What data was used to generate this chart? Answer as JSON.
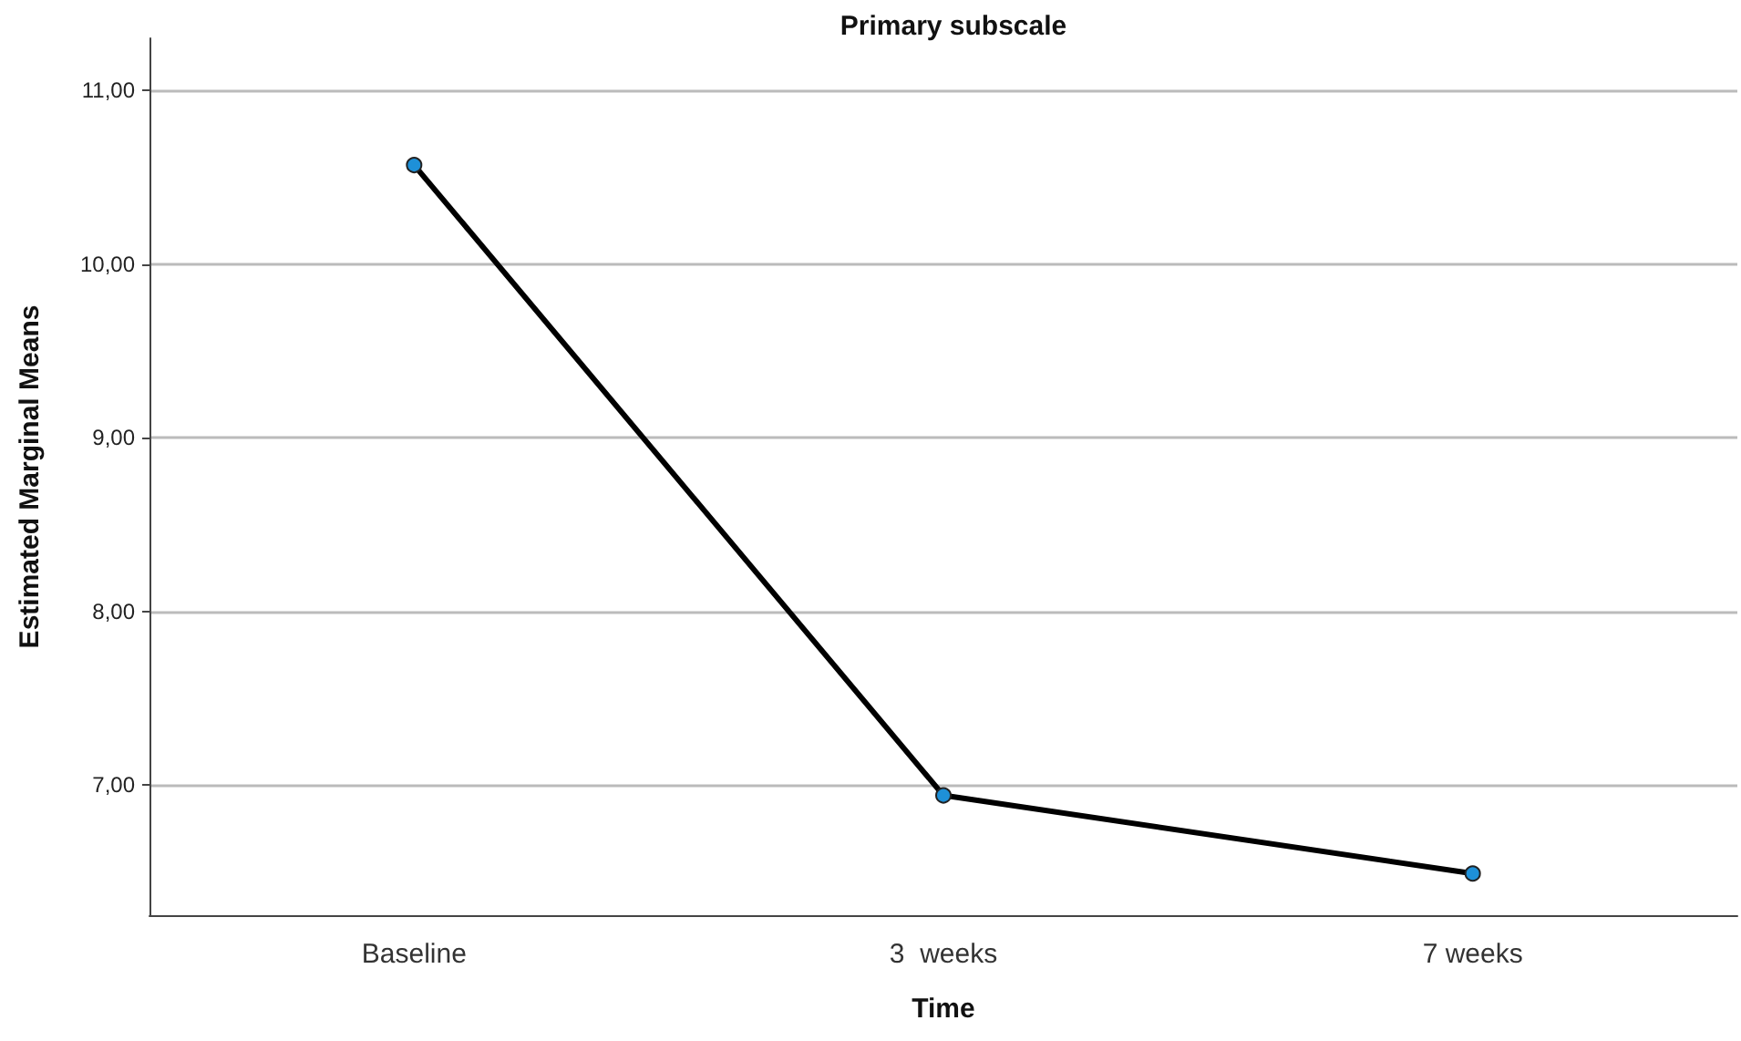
{
  "chart_data": {
    "type": "line",
    "title": "Primary subscale",
    "xlabel": "Time",
    "ylabel": "Estimated Marginal Means",
    "categories": [
      "Baseline",
      "3  weeks",
      "7 weeks"
    ],
    "series": [
      {
        "color": "#000000",
        "colors": [
          "#1e90d8",
          "#1e90d8",
          "#1e90d8"
        ],
        "values": [
          10.57,
          6.94,
          6.49
        ]
      }
    ],
    "ylim": [
      6.25,
      11.3
    ],
    "yticks": [
      {
        "value": 7,
        "label": "7,00"
      },
      {
        "value": 8,
        "label": "8,00"
      },
      {
        "value": 9,
        "label": "9,00"
      },
      {
        "value": 10,
        "label": "10,00"
      },
      {
        "value": 11,
        "label": "11,00"
      }
    ],
    "grid": "y",
    "marker": "circle",
    "line_style": "solid"
  }
}
